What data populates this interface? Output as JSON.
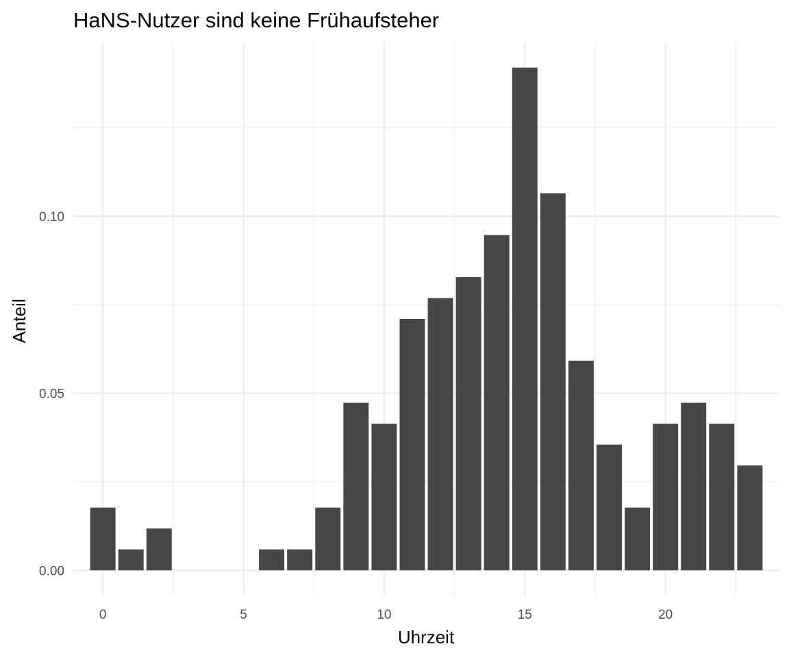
{
  "chart_data": {
    "type": "bar",
    "title": "HaNS-Nutzer sind keine Frühaufsteher",
    "xlabel": "Uhrzeit",
    "ylabel": "Anteil",
    "x": [
      0,
      1,
      2,
      3,
      4,
      5,
      6,
      7,
      8,
      9,
      10,
      11,
      12,
      13,
      14,
      15,
      16,
      17,
      18,
      19,
      20,
      21,
      22,
      23
    ],
    "values": [
      0.0177,
      0.0059,
      0.0118,
      0,
      0,
      0,
      0.0059,
      0.0059,
      0.0177,
      0.0473,
      0.0414,
      0.071,
      0.0769,
      0.0828,
      0.0947,
      0.142,
      0.1065,
      0.0592,
      0.0355,
      0.0177,
      0.0414,
      0.0473,
      0.0414,
      0.0296
    ],
    "xlim": [
      -1.05,
      24.05
    ],
    "ylim": [
      -0.0071,
      0.1491
    ],
    "x_ticks": [
      0,
      5,
      10,
      15,
      20
    ],
    "x_tick_labels": [
      "0",
      "5",
      "10",
      "15",
      "20"
    ],
    "y_ticks": [
      0,
      0.05,
      0.1
    ],
    "y_tick_labels": [
      "0.00",
      "0.05",
      "0.10"
    ],
    "grid": true,
    "bar_color": "#474747",
    "grid_color": "#ebebeb"
  }
}
